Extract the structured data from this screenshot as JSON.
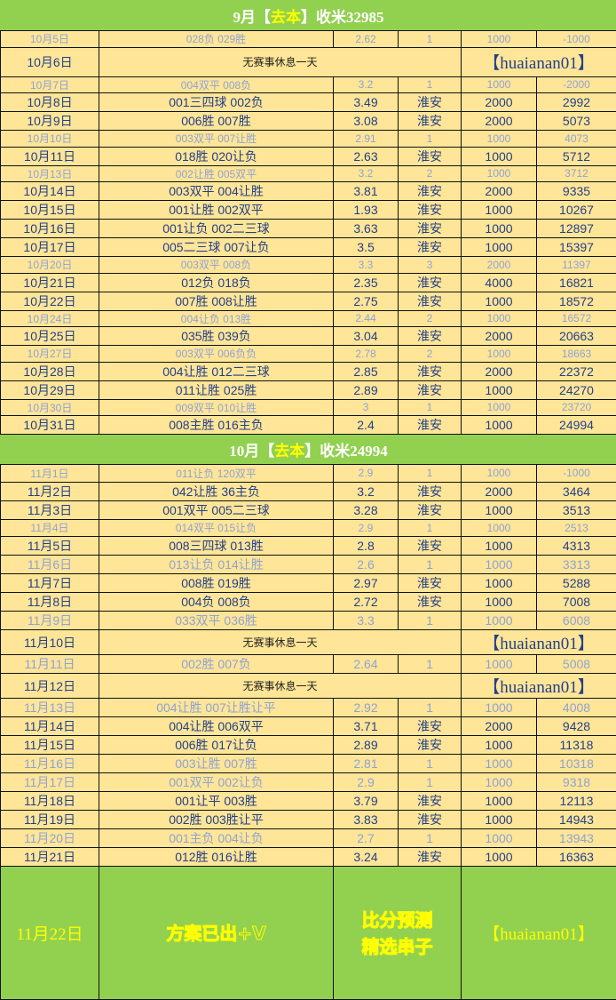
{
  "colors": {
    "header_bg": "#92d050",
    "row_bg": "#ffe597",
    "text": "#23408a",
    "faded": "#8ea3d6",
    "accent": "#ffff00"
  },
  "sections": [
    {
      "header": {
        "pre": "9月【",
        "accent": "去本",
        "post": "】收米32985"
      },
      "rows": [
        {
          "t": "lose",
          "d": "10月5日",
          "m": "028负 029胜",
          "o": "2.62",
          "r": "1",
          "s": "1000",
          "b": "-1000"
        },
        {
          "t": "rest",
          "d": "10月6日",
          "msg": "无赛事休息一天",
          "brand": "【huaianan01】"
        },
        {
          "t": "lose",
          "d": "10月7日",
          "m": "004双平 008负",
          "o": "3.2",
          "r": "1",
          "s": "1000",
          "b": "-2000"
        },
        {
          "t": "win",
          "d": "10月8日",
          "m": "001三四球 002负",
          "o": "3.49",
          "r": "淮安",
          "s": "2000",
          "b": "2992"
        },
        {
          "t": "win",
          "d": "10月9日",
          "m": "006胜 007胜",
          "o": "3.08",
          "r": "淮安",
          "s": "2000",
          "b": "5073"
        },
        {
          "t": "lose",
          "d": "10月10日",
          "m": "003双平 007让胜",
          "o": "2.91",
          "r": "1",
          "s": "1000",
          "b": "4073"
        },
        {
          "t": "win",
          "d": "10月11日",
          "m": "018胜 020让负",
          "o": "2.63",
          "r": "淮安",
          "s": "1000",
          "b": "5712"
        },
        {
          "t": "lose",
          "d": "10月13日",
          "m": "002让胜 005双平",
          "o": "3.2",
          "r": "2",
          "s": "1000",
          "b": "3712"
        },
        {
          "t": "win",
          "d": "10月14日",
          "m": "003双平 004让胜",
          "o": "3.81",
          "r": "淮安",
          "s": "2000",
          "b": "9335"
        },
        {
          "t": "win",
          "d": "10月15日",
          "m": "001让胜 002双平",
          "o": "1.93",
          "r": "淮安",
          "s": "1000",
          "b": "10267"
        },
        {
          "t": "win",
          "d": "10月16日",
          "m": "001让负 002二三球",
          "o": "3.63",
          "r": "淮安",
          "s": "1000",
          "b": "12897"
        },
        {
          "t": "win",
          "d": "10月17日",
          "m": "005二三球 007让负",
          "o": "3.5",
          "r": "淮安",
          "s": "1000",
          "b": "15397"
        },
        {
          "t": "lose",
          "d": "10月20日",
          "m": "003双平 008负",
          "o": "3.3",
          "r": "3",
          "s": "2000",
          "b": "11397"
        },
        {
          "t": "win",
          "d": "10月21日",
          "m": "012负 018负",
          "o": "2.35",
          "r": "淮安",
          "s": "4000",
          "b": "16821"
        },
        {
          "t": "win",
          "d": "10月22日",
          "m": "007胜 008让胜",
          "o": "2.75",
          "r": "淮安",
          "s": "1000",
          "b": "18572"
        },
        {
          "t": "lose",
          "d": "10月24日",
          "m": "004让负 013胜",
          "o": "2.44",
          "r": "2",
          "s": "1000",
          "b": "16572"
        },
        {
          "t": "win",
          "d": "10月25日",
          "m": "035胜 039负",
          "o": "3.04",
          "r": "淮安",
          "s": "2000",
          "b": "20663"
        },
        {
          "t": "lose",
          "d": "10月27日",
          "m": "003双平 006负负",
          "o": "2.78",
          "r": "2",
          "s": "1000",
          "b": "18663"
        },
        {
          "t": "win",
          "d": "10月28日",
          "m": "004让胜 012二三球",
          "o": "2.85",
          "r": "淮安",
          "s": "2000",
          "b": "22372"
        },
        {
          "t": "win",
          "d": "10月29日",
          "m": "011让胜 025胜",
          "o": "2.89",
          "r": "淮安",
          "s": "1000",
          "b": "24270"
        },
        {
          "t": "lose",
          "d": "10月30日",
          "m": "009双平 010让胜",
          "o": "3",
          "r": "1",
          "s": "1000",
          "b": "23720"
        },
        {
          "t": "win",
          "d": "10月31日",
          "m": "008主胜 016主负",
          "o": "2.4",
          "r": "淮安",
          "s": "1000",
          "b": "24994"
        }
      ]
    },
    {
      "header": {
        "pre": "10月【",
        "accent": "去本",
        "post": "】收米24994"
      },
      "rows": [
        {
          "t": "lose",
          "d": "11月1日",
          "m": "011让负 120双平",
          "o": "2.9",
          "r": "1",
          "s": "1000",
          "b": "-1000"
        },
        {
          "t": "win",
          "d": "11月2日",
          "m": "042让胜 36主负",
          "o": "3.2",
          "r": "淮安",
          "s": "2000",
          "b": "3464"
        },
        {
          "t": "win",
          "d": "11月3日",
          "m": "001双平 005二三球",
          "o": "3.28",
          "r": "淮安",
          "s": "1000",
          "b": "3513"
        },
        {
          "t": "lose",
          "d": "11月4日",
          "m": "014双平 015让负",
          "o": "2.9",
          "r": "1",
          "s": "1000",
          "b": "2513"
        },
        {
          "t": "win",
          "d": "11月5日",
          "m": "008三四球 013胜",
          "o": "2.8",
          "r": "淮安",
          "s": "1000",
          "b": "4313"
        },
        {
          "t": "lose big",
          "d": "11月6日",
          "m": "013让负 014让胜",
          "o": "2.6",
          "r": "1",
          "s": "1000",
          "b": "3313"
        },
        {
          "t": "win",
          "d": "11月7日",
          "m": "008胜 019胜",
          "o": "2.97",
          "r": "淮安",
          "s": "1000",
          "b": "5288"
        },
        {
          "t": "win",
          "d": "11月8日",
          "m": "004负 008负",
          "o": "2.72",
          "r": "淮安",
          "s": "1000",
          "b": "7008"
        },
        {
          "t": "lose big",
          "d": "11月9日",
          "m": "033双平 036胜",
          "o": "3.3",
          "r": "1",
          "s": "1000",
          "b": "6008"
        },
        {
          "t": "rest r2",
          "d": "11月10日",
          "msg": "无赛事休息一天",
          "brand": "【huaianan01】"
        },
        {
          "t": "lose big",
          "d": "11月11日",
          "m": "002胜 007负",
          "o": "2.64",
          "r": "1",
          "s": "1000",
          "b": "5008"
        },
        {
          "t": "rest r3",
          "d": "11月12日",
          "msg": "无赛事休息一天",
          "brand": "【huaianan01】"
        },
        {
          "t": "lose big",
          "d": "11月13日",
          "m": "004让胜 007让胜让平",
          "o": "2.92",
          "r": "1",
          "s": "1000",
          "b": "4008"
        },
        {
          "t": "win",
          "d": "11月14日",
          "m": "004让胜 006双平",
          "o": "3.71",
          "r": "淮安",
          "s": "2000",
          "b": "9428"
        },
        {
          "t": "win",
          "d": "11月15日",
          "m": "006胜 017让负",
          "o": "2.89",
          "r": "淮安",
          "s": "1000",
          "b": "11318"
        },
        {
          "t": "lose big",
          "d": "11月16日",
          "m": "003让胜 007胜",
          "o": "2.81",
          "r": "1",
          "s": "1000",
          "b": "10318"
        },
        {
          "t": "lose big",
          "d": "11月17日",
          "m": "001双平 002让负",
          "o": "2.9",
          "r": "1",
          "s": "1000",
          "b": "9318"
        },
        {
          "t": "win",
          "d": "11月18日",
          "m": "001让平 003胜",
          "o": "3.79",
          "r": "淮安",
          "s": "1000",
          "b": "12113"
        },
        {
          "t": "win",
          "d": "11月19日",
          "m": "002胜 003胜让平",
          "o": "3.83",
          "r": "淮安",
          "s": "1000",
          "b": "14943"
        },
        {
          "t": "lose big",
          "d": "11月20日",
          "m": "001主负 004让负",
          "o": "2.7",
          "r": "1",
          "s": "1000",
          "b": "13943"
        },
        {
          "t": "win",
          "d": "11月21日",
          "m": "012胜 016让胜",
          "o": "3.24",
          "r": "淮安",
          "s": "1000",
          "b": "16363"
        }
      ]
    }
  ],
  "final": {
    "date": "11月22日",
    "plan": "方案已出+V",
    "promo_line1": "比分预测",
    "promo_line2": "精选串子",
    "brand": "【huaianan01】"
  }
}
